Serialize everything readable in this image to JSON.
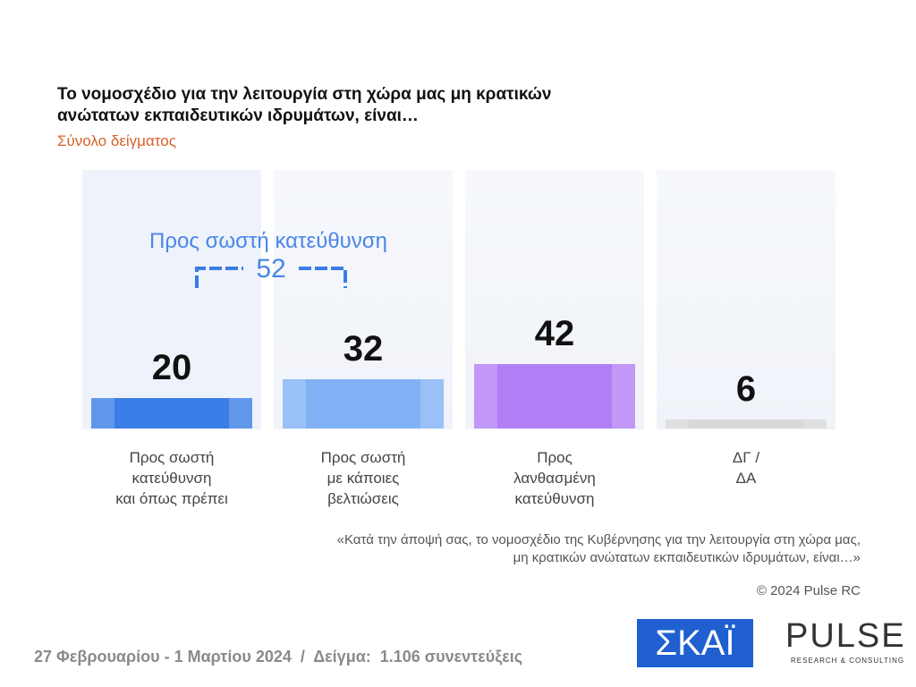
{
  "chart_data": {
    "type": "bar",
    "title": "Το νομοσχέδιο για την λειτουργία στη χώρα μας μη κρατικών\nανώτατων εκπαιδευτικών ιδρυμάτων, είναι…",
    "subtitle": "Σύνολο δείγματος",
    "categories": [
      "Προς σωστή\nκατεύθυνση\nκαι όπως πρέπει",
      "Προς σωστή\nμε κάποιες\nβελτιώσεις",
      "Προς\nλανθασμένη\nκατεύθυνση",
      "ΔΓ /\nΔΑ"
    ],
    "values": [
      20,
      32,
      42,
      6
    ],
    "colors": [
      "#3a7de6",
      "#80b1f5",
      "#b27ef6",
      "#d9d9d9"
    ],
    "annotation": {
      "label": "Προς σωστή κατεύθυνση",
      "value": 52
    },
    "note": "«Κατά την άποψή σας, το νομοσχέδιο της Κυβέρνησης για την λειτουργία στη χώρα μας,\nμη κρατικών ανώτατων εκπαιδευτικών ιδρυμάτων, είναι…»",
    "source": "© 2024 Pulse RC"
  },
  "footer": {
    "text": "27 Φεβρουαρίου - 1 Μαρτίου 2024  /  Δείγμα:  1.106 συνεντεύξεις",
    "logos": [
      "ΣΚΑΪ",
      "PULSE",
      "RESEARCH & CONSULTING"
    ]
  }
}
